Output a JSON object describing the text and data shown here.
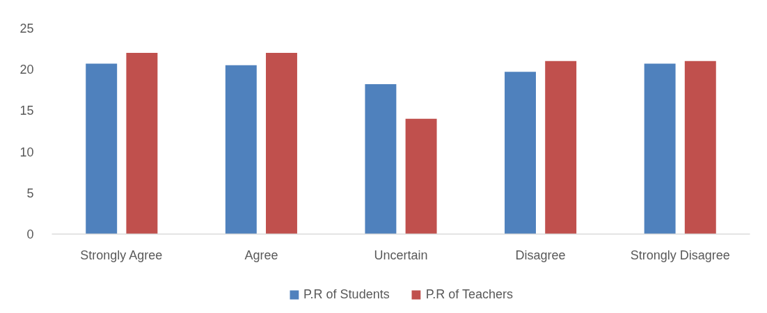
{
  "chart_data": {
    "type": "bar",
    "categories": [
      "Strongly Agree",
      "Agree",
      "Uncertain",
      "Disagree",
      "Strongly Disagree"
    ],
    "series": [
      {
        "name": "P.R of Students",
        "color": "#4f81bd",
        "values": [
          20.7,
          20.5,
          18.2,
          19.7,
          20.7
        ]
      },
      {
        "name": "P.R of Teachers",
        "color": "#c0504d",
        "values": [
          22,
          22,
          14,
          21,
          21
        ]
      }
    ],
    "ylim": [
      0,
      25
    ],
    "yticks": [
      0,
      5,
      10,
      15,
      20,
      25
    ],
    "grid": false,
    "legend": "bottom"
  }
}
